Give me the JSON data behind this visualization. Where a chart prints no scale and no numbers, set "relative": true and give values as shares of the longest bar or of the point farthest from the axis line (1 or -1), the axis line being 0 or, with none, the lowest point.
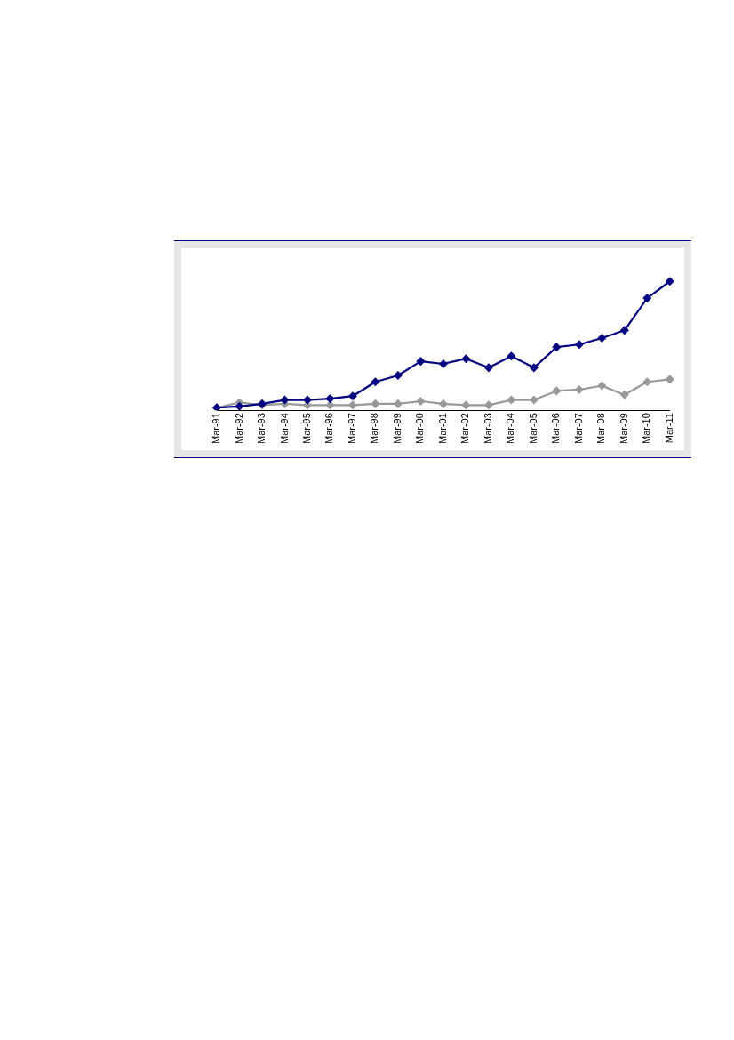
{
  "chart_data": {
    "type": "line",
    "relative": true,
    "marker": "diamond",
    "line_style": "solid",
    "legend": false,
    "categories": [
      "Mar-91",
      "Mar-92",
      "Mar-93",
      "Mar-94",
      "Mar-95",
      "Mar-96",
      "Mar-97",
      "Mar-98",
      "Mar-99",
      "Mar-00",
      "Mar-01",
      "Mar-02",
      "Mar-03",
      "Mar-04",
      "Mar-05",
      "Mar-06",
      "Mar-07",
      "Mar-08",
      "Mar-09",
      "Mar-10",
      "Mar-11"
    ],
    "series": [
      {
        "color": "#999999",
        "values": [
          0.02,
          0.06,
          0.04,
          0.05,
          0.04,
          0.04,
          0.04,
          0.05,
          0.05,
          0.07,
          0.05,
          0.04,
          0.04,
          0.08,
          0.08,
          0.15,
          0.16,
          0.19,
          0.12,
          0.22,
          0.24
        ]
      },
      {
        "color": "#000080",
        "values": [
          0.02,
          0.03,
          0.05,
          0.08,
          0.08,
          0.09,
          0.11,
          0.22,
          0.27,
          0.38,
          0.36,
          0.4,
          0.33,
          0.42,
          0.33,
          0.49,
          0.51,
          0.56,
          0.62,
          0.87,
          1
        ]
      }
    ]
  }
}
